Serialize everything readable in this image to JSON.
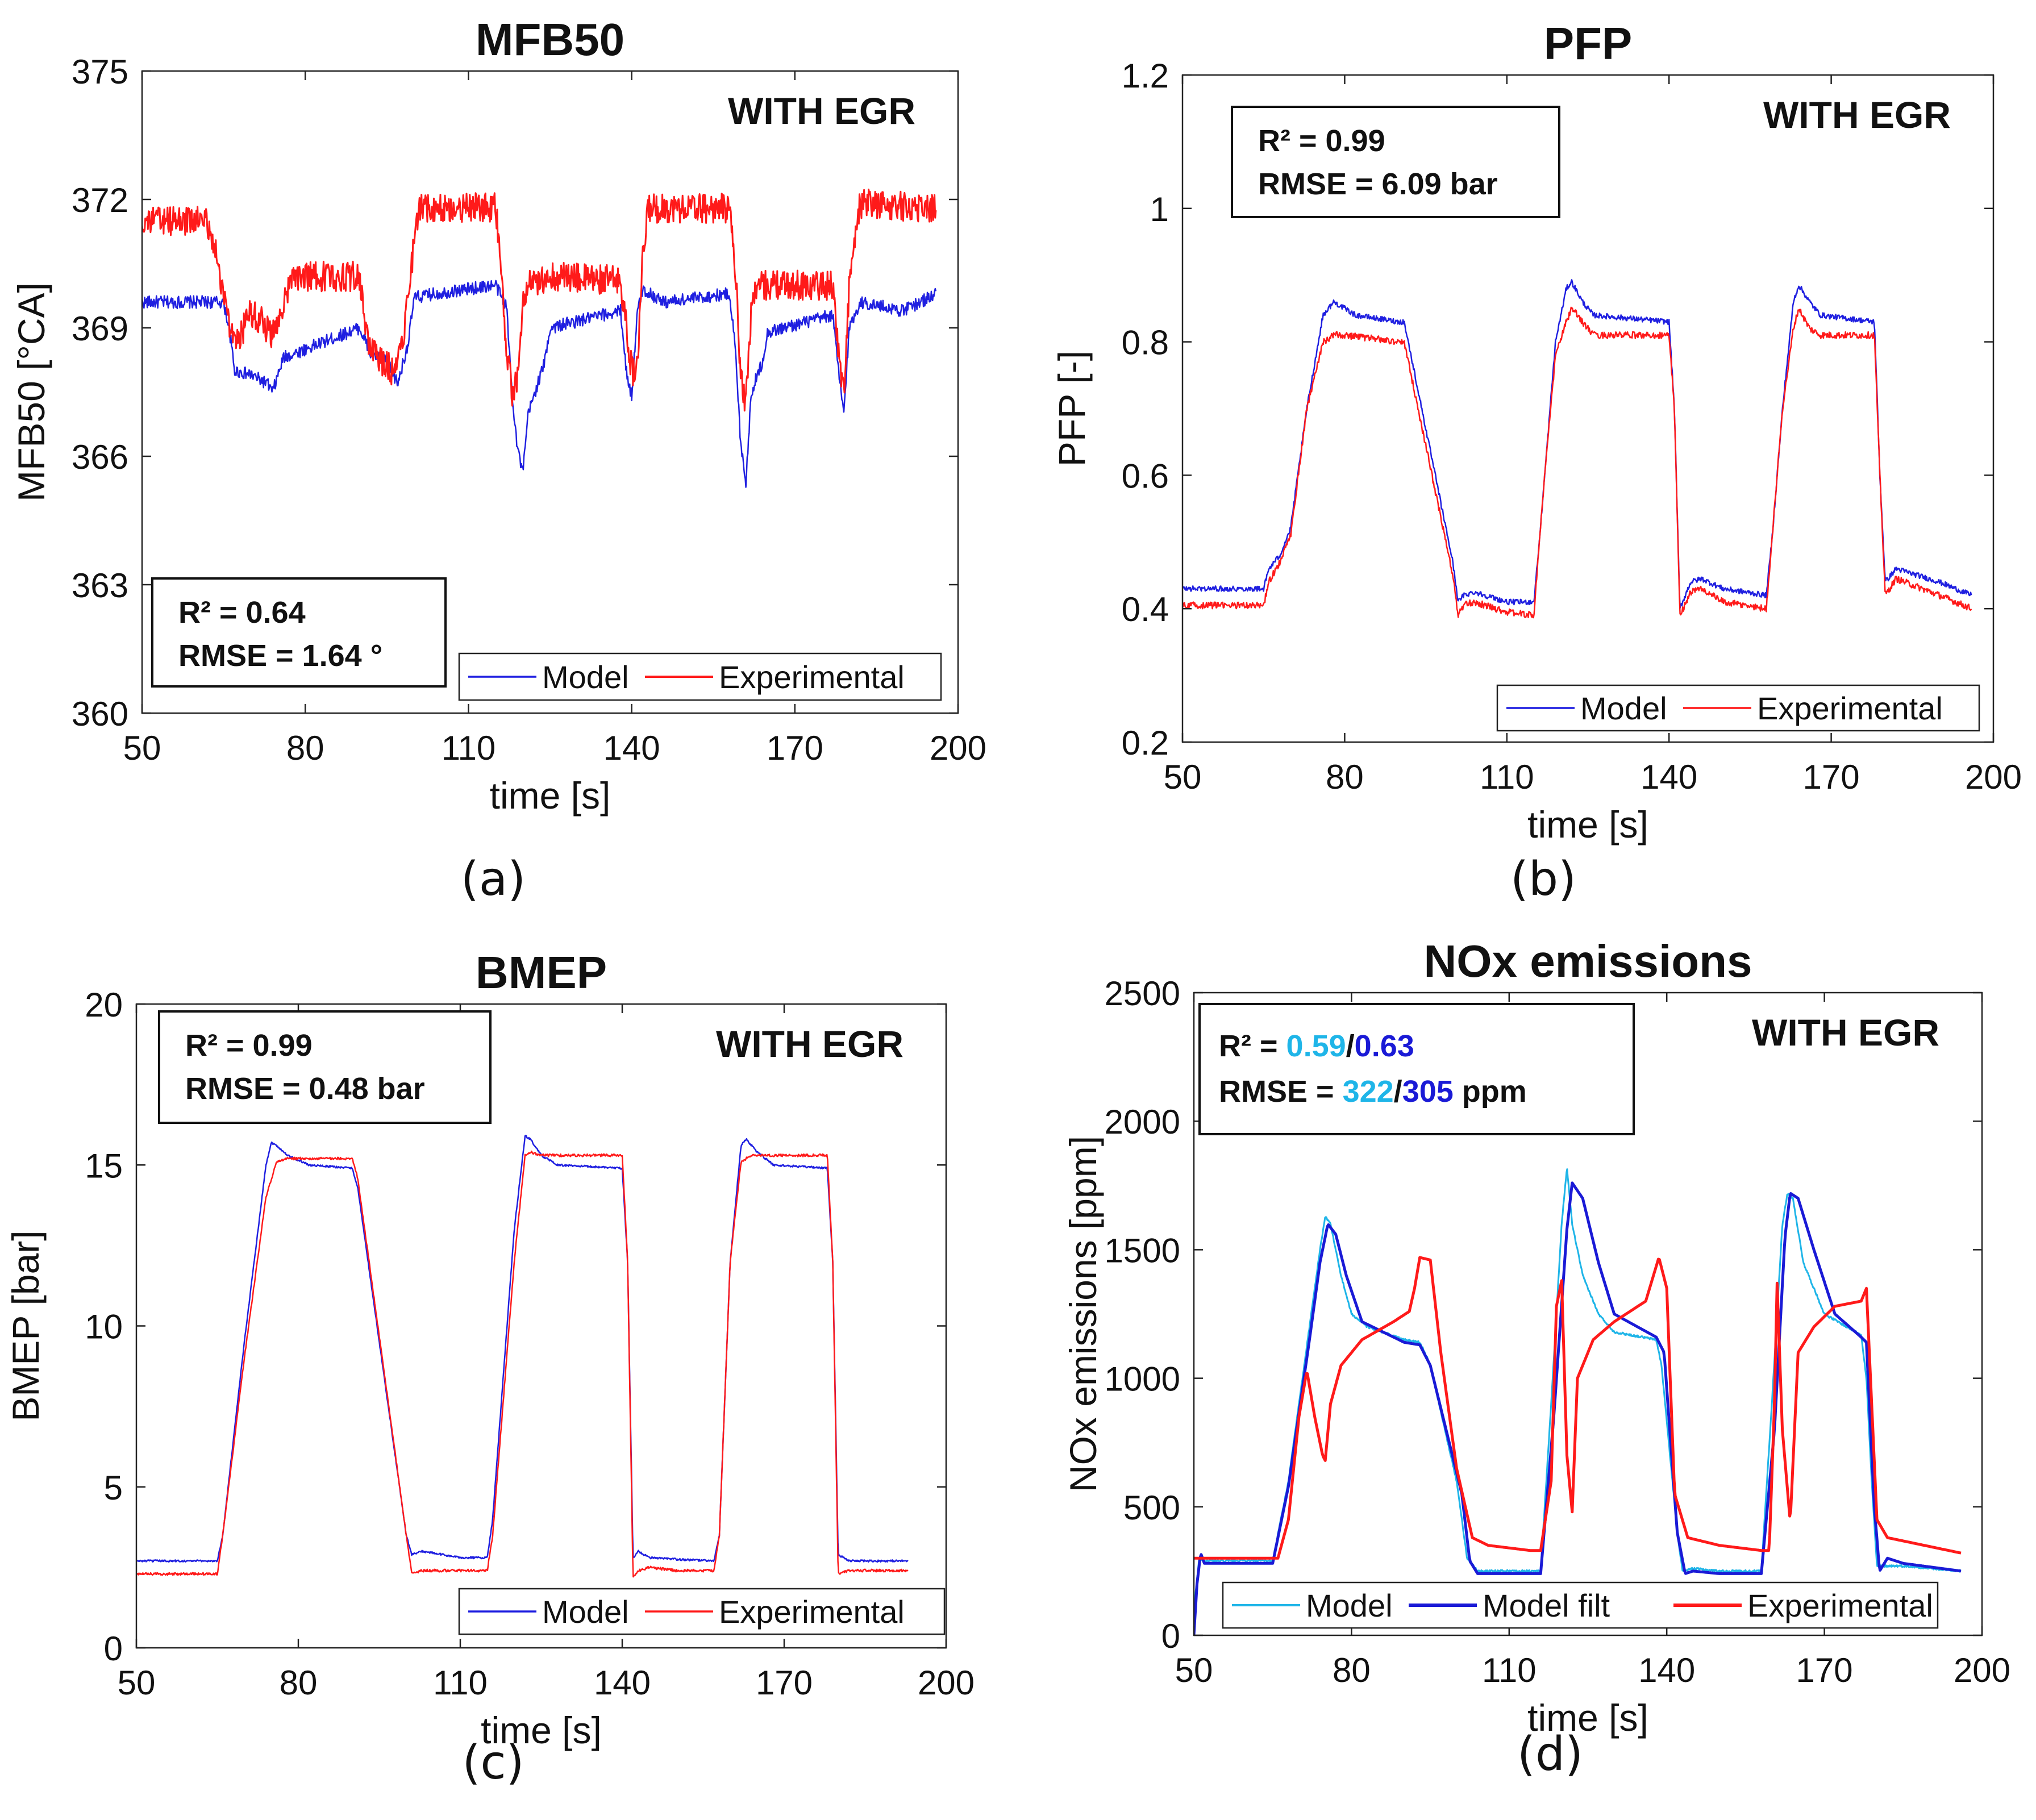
{
  "chart_data": [
    {
      "type": "line",
      "panel_label": "(a)",
      "title": "MFB50",
      "xlabel": "time [s]",
      "ylabel": "MFB50 [°CA]",
      "xlim": [
        50,
        200
      ],
      "ylim": [
        360,
        375
      ],
      "xticks": [
        50,
        80,
        110,
        140,
        170,
        200
      ],
      "yticks": [
        360,
        363,
        366,
        369,
        372,
        375
      ],
      "xtick_labels": [
        "50",
        "80",
        "110",
        "140",
        "170",
        "200"
      ],
      "ytick_labels": [
        "360",
        "363",
        "366",
        "369",
        "372",
        "375"
      ],
      "annotation": "WITH EGR",
      "stats": {
        "r2_label": "R² = 0.64",
        "rmse_label": "RMSE = 1.64 °"
      },
      "legend_position": "bottom-right",
      "legend": [
        "Model",
        "Experimental"
      ],
      "series": [
        {
          "name": "Model",
          "color": "#1f1fe0",
          "width": 2.5,
          "noise": 0.15,
          "x": [
            50,
            65,
            66,
            67,
            70,
            73,
            74,
            76,
            90,
            92,
            95,
            97,
            99,
            100,
            104,
            115,
            117,
            118,
            119,
            120,
            121,
            124,
            125,
            138,
            139,
            140,
            141,
            142,
            146,
            158,
            159,
            160,
            161,
            162,
            164,
            165,
            177,
            178,
            179,
            180,
            182,
            190,
            196
          ],
          "y": [
            369.6,
            369.6,
            369.0,
            368.0,
            367.9,
            367.7,
            367.5,
            368.3,
            369.0,
            368.4,
            368.2,
            367.7,
            368.7,
            369.7,
            369.8,
            370.0,
            369.5,
            367.5,
            366.2,
            365.6,
            367.0,
            368.2,
            369.0,
            369.4,
            368.0,
            367.4,
            369.3,
            369.9,
            369.6,
            369.8,
            368.6,
            366.4,
            365.4,
            367.5,
            368.2,
            368.9,
            369.3,
            368.0,
            367.0,
            369.0,
            369.6,
            369.4,
            369.8
          ]
        },
        {
          "name": "Experimental",
          "color": "#ff1a1a",
          "width": 3,
          "noise": 0.35,
          "x": [
            50,
            62,
            64,
            65,
            67,
            70,
            73,
            74,
            76,
            78,
            90,
            91,
            92,
            96,
            98,
            100,
            101,
            115,
            116,
            117,
            118,
            119,
            120,
            121,
            123,
            124,
            125,
            138,
            139,
            140,
            141,
            142,
            143,
            158,
            159,
            160,
            161,
            162,
            163,
            165,
            177,
            178,
            179,
            180,
            182,
            196
          ],
          "y": [
            371.5,
            371.5,
            370.5,
            369.8,
            368.5,
            369.4,
            369.0,
            368.8,
            369.6,
            370.2,
            370.2,
            369.0,
            368.5,
            368.0,
            368.8,
            371.0,
            371.8,
            371.8,
            370.5,
            368.5,
            367.5,
            367.8,
            369.5,
            370.0,
            370.0,
            370.2,
            370.2,
            370.1,
            369.0,
            368.0,
            368.0,
            370.5,
            371.8,
            371.8,
            370.5,
            368.0,
            367.2,
            369.5,
            370.0,
            370.0,
            370.0,
            368.5,
            367.4,
            370.0,
            371.9,
            371.8
          ]
        }
      ]
    },
    {
      "type": "line",
      "panel_label": "(b)",
      "title": "PFP",
      "xlabel": "time [s]",
      "ylabel": "PFP [-]",
      "xlim": [
        50,
        200
      ],
      "ylim": [
        0.2,
        1.2
      ],
      "xticks": [
        50,
        80,
        110,
        140,
        170,
        200
      ],
      "yticks": [
        0.2,
        0.4,
        0.6,
        0.8,
        1.0,
        1.2
      ],
      "xtick_labels": [
        "50",
        "80",
        "110",
        "140",
        "170",
        "200"
      ],
      "ytick_labels": [
        "0.2",
        "0.4",
        "0.6",
        "0.8",
        "1",
        "1.2"
      ],
      "annotation": "WITH EGR",
      "stats": {
        "r2_label": "R² = 0.99",
        "rmse_label": "RMSE = 6.09 bar"
      },
      "legend_position": "bottom-right",
      "legend": [
        "Model",
        "Experimental"
      ],
      "series": [
        {
          "name": "Model",
          "color": "#1f1fe0",
          "width": 2.5,
          "noise": 0.004,
          "x": [
            50,
            65,
            66,
            68,
            70,
            73,
            76,
            78,
            80,
            82,
            90,
            91,
            100,
            101,
            102,
            104,
            110,
            115,
            116,
            117,
            119,
            121,
            122,
            124,
            126,
            140,
            141,
            142,
            144,
            146,
            150,
            158,
            159,
            161,
            163,
            164,
            166,
            168,
            178,
            179,
            180,
            182,
            190,
            196
          ],
          "y": [
            0.43,
            0.43,
            0.46,
            0.48,
            0.52,
            0.7,
            0.84,
            0.86,
            0.85,
            0.84,
            0.83,
            0.83,
            0.47,
            0.41,
            0.42,
            0.425,
            0.41,
            0.41,
            0.5,
            0.6,
            0.8,
            0.88,
            0.89,
            0.86,
            0.84,
            0.83,
            0.7,
            0.4,
            0.44,
            0.445,
            0.43,
            0.42,
            0.5,
            0.7,
            0.86,
            0.885,
            0.86,
            0.84,
            0.83,
            0.6,
            0.44,
            0.46,
            0.44,
            0.42
          ]
        },
        {
          "name": "Experimental",
          "color": "#ff1a1a",
          "width": 2.5,
          "noise": 0.005,
          "x": [
            50,
            65,
            66,
            68,
            70,
            73,
            76,
            78,
            80,
            90,
            91,
            100,
            101,
            102,
            104,
            110,
            115,
            116,
            117,
            119,
            121,
            122,
            124,
            126,
            140,
            141,
            142,
            144,
            146,
            150,
            158,
            159,
            161,
            163,
            164,
            166,
            168,
            178,
            179,
            180,
            182,
            190,
            196
          ],
          "y": [
            0.405,
            0.405,
            0.44,
            0.47,
            0.51,
            0.7,
            0.8,
            0.81,
            0.81,
            0.8,
            0.8,
            0.45,
            0.39,
            0.405,
            0.41,
            0.395,
            0.39,
            0.5,
            0.6,
            0.78,
            0.83,
            0.85,
            0.83,
            0.81,
            0.81,
            0.7,
            0.39,
            0.425,
            0.43,
            0.41,
            0.4,
            0.5,
            0.7,
            0.82,
            0.85,
            0.82,
            0.81,
            0.81,
            0.6,
            0.42,
            0.445,
            0.42,
            0.4
          ]
        }
      ]
    },
    {
      "type": "line",
      "panel_label": "(c)",
      "title": "BMEP",
      "xlabel": "time [s]",
      "ylabel": "BMEP [bar]",
      "xlim": [
        50,
        200
      ],
      "ylim": [
        0,
        20
      ],
      "xticks": [
        50,
        80,
        110,
        140,
        170,
        200
      ],
      "yticks": [
        0,
        5,
        10,
        15,
        20
      ],
      "xtick_labels": [
        "50",
        "80",
        "110",
        "140",
        "170",
        "200"
      ],
      "ytick_labels": [
        "0",
        "5",
        "10",
        "15",
        "20"
      ],
      "annotation": "WITH EGR",
      "stats": {
        "r2_label": "R² = 0.99",
        "rmse_label": "RMSE = 0.48 bar"
      },
      "legend_position": "bottom-right",
      "legend": [
        "Model",
        "Experimental"
      ],
      "series": [
        {
          "name": "Model",
          "color": "#1f1fe0",
          "width": 2.5,
          "noise": 0.03,
          "x": [
            50,
            65,
            66,
            70,
            74,
            75,
            76,
            78,
            82,
            90,
            91,
            100,
            101,
            103,
            110,
            115,
            116,
            120,
            122,
            123,
            125,
            128,
            140,
            141,
            142,
            143,
            145,
            150,
            157,
            158,
            160,
            162,
            163,
            165,
            168,
            178,
            179,
            180,
            182,
            193
          ],
          "y": [
            2.7,
            2.7,
            3.5,
            9.5,
            15.0,
            15.7,
            15.6,
            15.3,
            15.0,
            14.9,
            14.3,
            3.5,
            2.9,
            3.0,
            2.8,
            2.8,
            4.0,
            13.0,
            15.9,
            15.8,
            15.3,
            15.0,
            14.9,
            12.0,
            2.8,
            3.0,
            2.8,
            2.75,
            2.7,
            3.5,
            12.0,
            15.6,
            15.8,
            15.4,
            15.0,
            14.9,
            12.0,
            2.9,
            2.7,
            2.7
          ]
        },
        {
          "name": "Experimental",
          "color": "#ff1a1a",
          "width": 2.5,
          "noise": 0.04,
          "x": [
            50,
            65,
            66,
            70,
            74,
            76,
            78,
            90,
            91,
            100,
            101,
            103,
            110,
            115,
            116,
            120,
            122,
            123,
            125,
            140,
            141,
            142,
            143,
            145,
            150,
            157,
            158,
            160,
            162,
            164,
            166,
            178,
            179,
            180,
            182,
            193
          ],
          "y": [
            2.3,
            2.3,
            3.5,
            9.0,
            14.0,
            15.1,
            15.2,
            15.2,
            14.6,
            3.5,
            2.3,
            2.4,
            2.4,
            2.4,
            3.5,
            12.0,
            15.3,
            15.4,
            15.3,
            15.3,
            12.0,
            2.2,
            2.4,
            2.5,
            2.4,
            2.4,
            3.5,
            12.0,
            15.1,
            15.3,
            15.3,
            15.3,
            12.0,
            2.3,
            2.4,
            2.4
          ]
        }
      ]
    },
    {
      "type": "line",
      "panel_label": "(d)",
      "title": "NOx emissions",
      "xlabel": "time [s]",
      "ylabel": "NOx emissions [ppm]",
      "xlim": [
        50,
        200
      ],
      "ylim": [
        0,
        2500
      ],
      "xticks": [
        50,
        80,
        110,
        140,
        170,
        200
      ],
      "yticks": [
        0,
        500,
        1000,
        1500,
        2000,
        2500
      ],
      "xtick_labels": [
        "50",
        "80",
        "110",
        "140",
        "170",
        "200"
      ],
      "ytick_labels": [
        "0",
        "500",
        "1000",
        "1500",
        "2000",
        "2500"
      ],
      "annotation": "WITH EGR",
      "stats": {
        "r2_prefix": "R² = ",
        "r2_a": "0.59",
        "slash": "/",
        "r2_b": "0.63",
        "rmse_prefix": "RMSE = ",
        "rmse_a": "322",
        "rmse_b": "305",
        "rmse_unit": " ppm",
        "color_a": "#1fb5e8",
        "color_b": "#1a1ad6"
      },
      "legend_position": "bottom",
      "legend": [
        "Model",
        "Model filt",
        "Experimental"
      ],
      "series": [
        {
          "name": "Model",
          "color": "#1fb5e8",
          "width": 3,
          "noise": 4,
          "x": [
            50,
            51,
            52,
            53,
            65,
            68,
            72,
            74,
            75,
            76,
            78,
            80,
            83,
            90,
            93,
            94,
            95,
            100,
            102,
            104,
            108,
            116,
            118,
            120,
            121,
            122,
            124,
            127,
            130,
            138,
            139,
            142,
            143,
            145,
            150,
            158,
            160,
            162,
            163,
            164,
            166,
            170,
            176,
            177,
            178,
            179,
            180,
            185,
            196
          ],
          "y": [
            100,
            300,
            290,
            290,
            290,
            600,
            1200,
            1500,
            1630,
            1600,
            1400,
            1250,
            1200,
            1150,
            1140,
            1100,
            1050,
            600,
            300,
            250,
            250,
            250,
            900,
            1600,
            1820,
            1600,
            1400,
            1250,
            1180,
            1150,
            1050,
            400,
            250,
            260,
            250,
            250,
            900,
            1600,
            1720,
            1700,
            1450,
            1250,
            1180,
            1170,
            1000,
            600,
            270,
            270,
            250
          ]
        },
        {
          "name": "Model filt",
          "color": "#1a1ad6",
          "width": 5,
          "noise": 0,
          "x": [
            50,
            50.6,
            51.3,
            52,
            53,
            65,
            68,
            72,
            74,
            75.5,
            77,
            79,
            82,
            90,
            93,
            94,
            95,
            101,
            102.5,
            104,
            108,
            116,
            118.5,
            121,
            122,
            124,
            127,
            130,
            138,
            139.5,
            142,
            143.5,
            145,
            150,
            158,
            160.5,
            162.5,
            163.5,
            165,
            168,
            172,
            177,
            178,
            179.5,
            180.5,
            182,
            185,
            196
          ],
          "y": [
            0,
            200,
            320,
            280,
            280,
            280,
            580,
            1150,
            1450,
            1600,
            1560,
            1400,
            1220,
            1140,
            1130,
            1090,
            1050,
            550,
            290,
            240,
            240,
            240,
            850,
            1580,
            1760,
            1700,
            1450,
            1250,
            1160,
            1100,
            400,
            240,
            250,
            240,
            240,
            800,
            1550,
            1720,
            1700,
            1500,
            1250,
            1160,
            1140,
            500,
            250,
            300,
            280,
            250
          ]
        },
        {
          "name": "Experimental",
          "color": "#ff1a1a",
          "width": 5,
          "noise": 0,
          "x": [
            50,
            66,
            68,
            70,
            71.5,
            73,
            74.5,
            75,
            76,
            78,
            82,
            88,
            91,
            92,
            93,
            95,
            97,
            100,
            103,
            106,
            110,
            114,
            116,
            118,
            119,
            120,
            121,
            122,
            123,
            126,
            130,
            136,
            138.5,
            140,
            141.5,
            144,
            150,
            158,
            159.5,
            160.5,
            161,
            162,
            163.5,
            165,
            168,
            172,
            177,
            178,
            180,
            182,
            196
          ],
          "y": [
            300,
            300,
            450,
            850,
            1030,
            850,
            700,
            680,
            900,
            1050,
            1150,
            1220,
            1260,
            1350,
            1470,
            1460,
            1100,
            650,
            380,
            350,
            340,
            330,
            330,
            600,
            1280,
            1380,
            700,
            480,
            1000,
            1150,
            1220,
            1300,
            1470,
            1350,
            550,
            380,
            350,
            330,
            330,
            900,
            1370,
            800,
            440,
            1100,
            1200,
            1280,
            1300,
            1350,
            450,
            380,
            320
          ]
        }
      ]
    }
  ]
}
